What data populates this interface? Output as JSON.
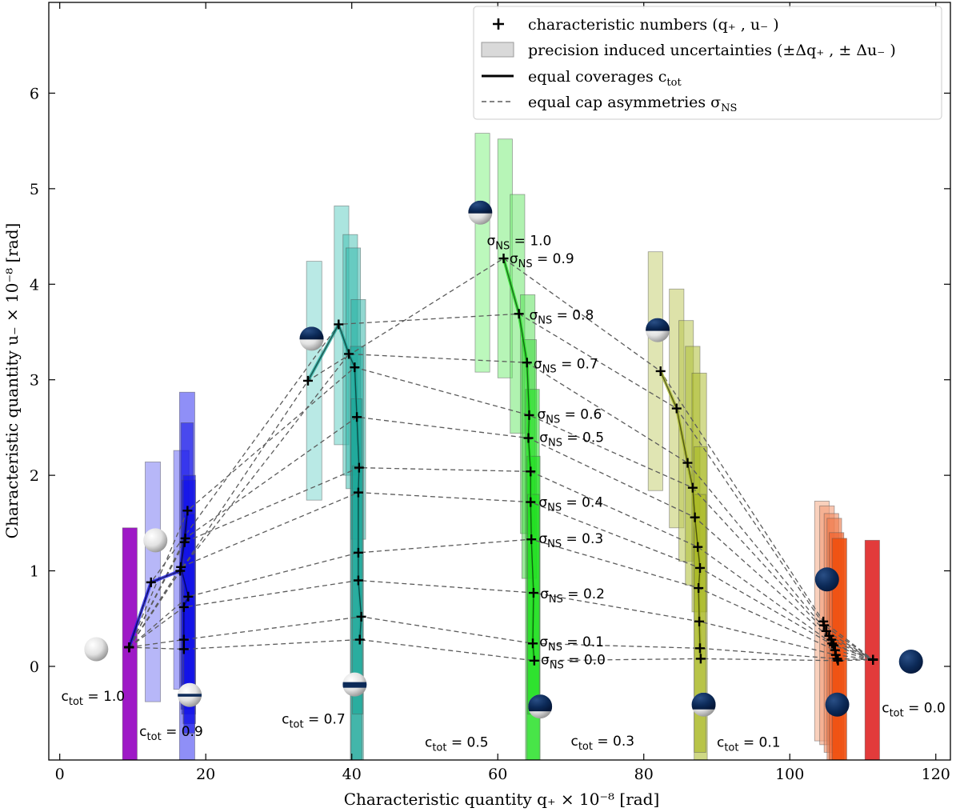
{
  "chart_data": {
    "type": "scatter",
    "title": "",
    "xlabel": "Characteristic quantity q₊ × 10⁻⁸ [rad]",
    "ylabel": "Characteristic quantity u₋ × 10⁻⁸ [rad]",
    "xlim": [
      -1.5,
      122
    ],
    "ylim": [
      -0.98,
      6.95
    ],
    "xticks": [
      "0",
      "20",
      "40",
      "60",
      "80",
      "100",
      "120"
    ],
    "yticks": [
      "0",
      "1",
      "2",
      "3",
      "4",
      "5",
      "6"
    ],
    "legend": {
      "placement": "top-right",
      "entries": [
        "characteristic numbers (q₊ , u₋ )",
        "precision induced uncertainties (±Δq₊ , ± Δu₋ )",
        "equal coverages c_tot",
        "equal cap asymmetries σ_NS"
      ]
    },
    "sigma_values": [
      0.0,
      0.1,
      0.2,
      0.3,
      0.4,
      0.5,
      0.6,
      0.7,
      0.8,
      0.9,
      1.0
    ],
    "series": [
      {
        "name": "c_tot = 1.0",
        "color": "#9400c0",
        "points": [
          [
            9.5,
            0.2
          ],
          [
            9.5,
            0.2
          ],
          [
            9.5,
            0.2
          ],
          [
            9.5,
            0.2
          ],
          [
            9.5,
            0.2
          ],
          [
            9.5,
            0.2
          ],
          [
            9.5,
            0.2
          ],
          [
            9.5,
            0.2
          ],
          [
            9.5,
            0.2
          ],
          [
            9.5,
            0.2
          ],
          [
            9.5,
            0.2
          ]
        ]
      },
      {
        "name": "c_tot = 0.9",
        "color": "#1010e8",
        "points": [
          [
            17.0,
            0.18
          ],
          [
            17.0,
            0.28
          ],
          [
            17.0,
            0.62
          ],
          [
            17.6,
            0.73
          ],
          [
            16.6,
            1.04
          ],
          [
            17.1,
            1.3
          ],
          [
            17.2,
            1.34
          ],
          [
            17.5,
            1.63
          ],
          [
            16.5,
            1.0
          ],
          [
            12.5,
            0.88
          ],
          [
            9.5,
            0.2
          ]
        ]
      },
      {
        "name": "c_tot = 0.7",
        "color": "#1aa698",
        "points": [
          [
            41.1,
            0.28
          ],
          [
            41.3,
            0.52
          ],
          [
            40.9,
            0.9
          ],
          [
            40.9,
            1.19
          ],
          [
            40.9,
            1.82
          ],
          [
            41.0,
            2.08
          ],
          [
            40.7,
            2.61
          ],
          [
            40.4,
            3.13
          ],
          [
            39.6,
            3.27
          ],
          [
            38.2,
            3.58
          ],
          [
            34.0,
            2.99
          ]
        ]
      },
      {
        "name": "c_tot = 0.5",
        "color": "#20e020",
        "points": [
          [
            65.0,
            0.06
          ],
          [
            64.8,
            0.24
          ],
          [
            64.9,
            0.77
          ],
          [
            64.6,
            1.33
          ],
          [
            64.5,
            1.72
          ],
          [
            64.5,
            2.04
          ],
          [
            64.2,
            2.39
          ],
          [
            64.3,
            2.63
          ],
          [
            64.0,
            3.18
          ],
          [
            62.9,
            3.69
          ],
          [
            60.8,
            4.27
          ]
        ]
      },
      {
        "name": "c_tot = 0.3",
        "color": "#a8b820",
        "points": [
          [
            87.8,
            0.08
          ],
          [
            87.7,
            0.19
          ],
          [
            87.6,
            0.47
          ],
          [
            87.5,
            0.82
          ],
          [
            87.7,
            1.03
          ],
          [
            87.4,
            1.25
          ],
          [
            87.0,
            1.56
          ],
          [
            86.7,
            1.87
          ],
          [
            86.0,
            2.13
          ],
          [
            84.5,
            2.7
          ],
          [
            82.3,
            3.09
          ]
        ]
      },
      {
        "name": "c_tot = 0.1",
        "color": "#f05010",
        "points": [
          [
            106.6,
            0.06
          ],
          [
            106.5,
            0.08
          ],
          [
            106.3,
            0.12
          ],
          [
            106.2,
            0.17
          ],
          [
            106.0,
            0.22
          ],
          [
            105.8,
            0.24
          ],
          [
            105.7,
            0.28
          ],
          [
            105.4,
            0.32
          ],
          [
            105.0,
            0.37
          ],
          [
            104.7,
            0.43
          ],
          [
            104.6,
            0.47
          ]
        ]
      },
      {
        "name": "c_tot = 0.0",
        "color": "#e03030",
        "points": [
          [
            111.4,
            0.07
          ],
          [
            111.4,
            0.07
          ],
          [
            111.4,
            0.07
          ],
          [
            111.4,
            0.07
          ],
          [
            111.4,
            0.07
          ],
          [
            111.4,
            0.07
          ],
          [
            111.4,
            0.07
          ],
          [
            111.4,
            0.07
          ],
          [
            111.4,
            0.07
          ],
          [
            111.4,
            0.07
          ],
          [
            111.4,
            0.07
          ]
        ]
      }
    ],
    "uncertainty_boxes": [
      {
        "color": "#9400c0",
        "alpha": 0.9,
        "x0": 8.6,
        "x1": 10.6,
        "y0": -1.5,
        "y1": 1.45
      },
      {
        "color": "#6060f0",
        "alpha": 0.45,
        "x0": 11.7,
        "x1": 13.8,
        "y0": -0.37,
        "y1": 2.14
      },
      {
        "color": "#3030f0",
        "alpha": 0.4,
        "x0": 15.6,
        "x1": 17.7,
        "y0": -0.24,
        "y1": 2.26
      },
      {
        "color": "#2020f0",
        "alpha": 0.5,
        "x0": 16.4,
        "x1": 18.5,
        "y0": -1.5,
        "y1": 2.87
      },
      {
        "color": "#1010e8",
        "alpha": 0.55,
        "x0": 16.6,
        "x1": 18.3,
        "y0": -0.45,
        "y1": 2.55
      },
      {
        "color": "#1010e8",
        "alpha": 0.55,
        "x0": 16.7,
        "x1": 18.6,
        "y0": -0.5,
        "y1": 1.95
      },
      {
        "color": "#1010e8",
        "alpha": 0.6,
        "x0": 16.9,
        "x1": 18.6,
        "y0": -0.6,
        "y1": 2.0
      },
      {
        "color": "#1010e8",
        "alpha": 0.6,
        "x0": 17.0,
        "x1": 18.5,
        "y0": -0.7,
        "y1": 1.6
      },
      {
        "color": "#7fd7cf",
        "alpha": 0.55,
        "x0": 33.8,
        "x1": 35.9,
        "y0": 1.74,
        "y1": 4.24
      },
      {
        "color": "#58ccc0",
        "alpha": 0.5,
        "x0": 37.6,
        "x1": 39.6,
        "y0": 2.32,
        "y1": 4.82
      },
      {
        "color": "#40c0b2",
        "alpha": 0.5,
        "x0": 38.8,
        "x1": 40.8,
        "y0": 2.0,
        "y1": 4.52
      },
      {
        "color": "#30b8aa",
        "alpha": 0.5,
        "x0": 39.2,
        "x1": 41.2,
        "y0": 1.86,
        "y1": 4.38
      },
      {
        "color": "#26b0a2",
        "alpha": 0.5,
        "x0": 39.9,
        "x1": 41.9,
        "y0": 1.33,
        "y1": 3.84
      },
      {
        "color": "#1aa698",
        "alpha": 0.55,
        "x0": 39.8,
        "x1": 41.6,
        "y0": -1.5,
        "y1": 3.35
      },
      {
        "color": "#1aa698",
        "alpha": 0.6,
        "x0": 39.9,
        "x1": 41.4,
        "y0": -0.98,
        "y1": 2.8
      },
      {
        "color": "#1aa698",
        "alpha": 0.6,
        "x0": 40.1,
        "x1": 41.5,
        "y0": -0.5,
        "y1": 2.1
      },
      {
        "color": "#a6f5a6",
        "alpha": 0.75,
        "x0": 56.9,
        "x1": 58.9,
        "y0": 3.08,
        "y1": 5.58
      },
      {
        "color": "#90f090",
        "alpha": 0.65,
        "x0": 60.0,
        "x1": 62.0,
        "y0": 3.02,
        "y1": 5.52
      },
      {
        "color": "#70e870",
        "alpha": 0.55,
        "x0": 61.7,
        "x1": 63.7,
        "y0": 2.44,
        "y1": 4.94
      },
      {
        "color": "#50e050",
        "alpha": 0.5,
        "x0": 63.1,
        "x1": 65.1,
        "y0": 1.39,
        "y1": 3.89
      },
      {
        "color": "#38d838",
        "alpha": 0.5,
        "x0": 63.3,
        "x1": 65.3,
        "y0": 0.92,
        "y1": 3.42
      },
      {
        "color": "#20e020",
        "alpha": 0.55,
        "x0": 63.8,
        "x1": 65.7,
        "y0": -1.5,
        "y1": 2.9
      },
      {
        "color": "#20e020",
        "alpha": 0.6,
        "x0": 64.0,
        "x1": 65.8,
        "y0": -0.98,
        "y1": 2.2
      },
      {
        "color": "#20e020",
        "alpha": 0.6,
        "x0": 64.1,
        "x1": 65.7,
        "y0": -0.5,
        "y1": 1.8
      },
      {
        "color": "#d6dc9a",
        "alpha": 0.75,
        "x0": 80.6,
        "x1": 82.6,
        "y0": 1.84,
        "y1": 4.34
      },
      {
        "color": "#c6cf70",
        "alpha": 0.6,
        "x0": 83.5,
        "x1": 85.5,
        "y0": 1.45,
        "y1": 3.95
      },
      {
        "color": "#b8c450",
        "alpha": 0.55,
        "x0": 84.8,
        "x1": 86.8,
        "y0": 1.1,
        "y1": 3.62
      },
      {
        "color": "#afbe35",
        "alpha": 0.55,
        "x0": 85.7,
        "x1": 87.7,
        "y0": 0.85,
        "y1": 3.35
      },
      {
        "color": "#a8b820",
        "alpha": 0.5,
        "x0": 86.6,
        "x1": 88.6,
        "y0": 0.57,
        "y1": 3.07
      },
      {
        "color": "#a8b820",
        "alpha": 0.55,
        "x0": 86.9,
        "x1": 88.7,
        "y0": -1.5,
        "y1": 2.3
      },
      {
        "color": "#a8b820",
        "alpha": 0.6,
        "x0": 86.9,
        "x1": 88.5,
        "y0": -0.9,
        "y1": 1.8
      },
      {
        "color": "#f5b090",
        "alpha": 0.6,
        "x0": 103.4,
        "x1": 105.4,
        "y0": -0.78,
        "y1": 1.73
      },
      {
        "color": "#f49c78",
        "alpha": 0.6,
        "x0": 104.1,
        "x1": 106.1,
        "y0": -0.82,
        "y1": 1.68
      },
      {
        "color": "#f28a60",
        "alpha": 0.6,
        "x0": 104.7,
        "x1": 106.7,
        "y0": -0.9,
        "y1": 1.6
      },
      {
        "color": "#f07848",
        "alpha": 0.6,
        "x0": 105.1,
        "x1": 107.1,
        "y0": -0.98,
        "y1": 1.55
      },
      {
        "color": "#f06530",
        "alpha": 0.7,
        "x0": 105.4,
        "x1": 107.4,
        "y0": -1.5,
        "y1": 1.4
      },
      {
        "color": "#f05010",
        "alpha": 0.9,
        "x0": 105.8,
        "x1": 107.8,
        "y0": -1.5,
        "y1": 1.34
      },
      {
        "color": "#e03030",
        "alpha": 0.95,
        "x0": 110.3,
        "x1": 112.3,
        "y0": -1.5,
        "y1": 1.32
      }
    ],
    "coverage_labels": [
      {
        "text": "c_tot = 1.0",
        "x": 0.2,
        "y": -0.36
      },
      {
        "text": "c_tot = 0.9",
        "x": 10.9,
        "y": -0.73
      },
      {
        "text": "c_tot = 0.7",
        "x": 30.4,
        "y": -0.6
      },
      {
        "text": "c_tot = 0.5",
        "x": 50.0,
        "y": -0.84
      },
      {
        "text": "c_tot = 0.3",
        "x": 70.0,
        "y": -0.83
      },
      {
        "text": "c_tot = 0.1",
        "x": 90.0,
        "y": -0.84
      },
      {
        "text": "c_tot = 0.0",
        "x": 112.6,
        "y": -0.48
      }
    ],
    "sigma_labels": [
      {
        "text": "σ_NS = 0.0",
        "x": 65.9,
        "y": 0.07
      },
      {
        "text": "σ_NS = 0.1",
        "x": 65.7,
        "y": 0.26
      },
      {
        "text": "σ_NS = 0.2",
        "x": 65.8,
        "y": 0.76
      },
      {
        "text": "σ_NS = 0.3",
        "x": 65.6,
        "y": 1.34
      },
      {
        "text": "σ_NS = 0.4",
        "x": 65.6,
        "y": 1.72
      },
      {
        "text": "σ_NS = 0.5",
        "x": 65.7,
        "y": 2.4
      },
      {
        "text": "σ_NS = 0.6",
        "x": 65.4,
        "y": 2.64
      },
      {
        "text": "σ_NS = 0.7",
        "x": 64.9,
        "y": 3.17
      },
      {
        "text": "σ_NS = 0.8",
        "x": 64.3,
        "y": 3.68
      },
      {
        "text": "σ_NS = 0.9",
        "x": 61.6,
        "y": 4.27
      },
      {
        "text": "σ_NS = 1.0",
        "x": 58.5,
        "y": 4.46
      }
    ],
    "spheres": [
      {
        "type": "white",
        "x": 5.0,
        "y": 0.18
      },
      {
        "type": "white",
        "x": 13.1,
        "y": 1.32
      },
      {
        "type": "band",
        "x": 17.8,
        "y": -0.3
      },
      {
        "type": "upper_dark",
        "x": 34.5,
        "y": 3.43
      },
      {
        "type": "band_mid",
        "x": 40.4,
        "y": -0.19
      },
      {
        "type": "upper_dark",
        "x": 57.6,
        "y": 4.75
      },
      {
        "type": "lower_white",
        "x": 65.8,
        "y": -0.42
      },
      {
        "type": "upper_dark",
        "x": 81.9,
        "y": 3.52
      },
      {
        "type": "lower_white",
        "x": 88.2,
        "y": -0.4
      },
      {
        "type": "dark",
        "x": 105.1,
        "y": 0.91
      },
      {
        "type": "dark",
        "x": 106.5,
        "y": -0.4
      },
      {
        "type": "dark",
        "x": 116.6,
        "y": 0.05
      }
    ]
  }
}
